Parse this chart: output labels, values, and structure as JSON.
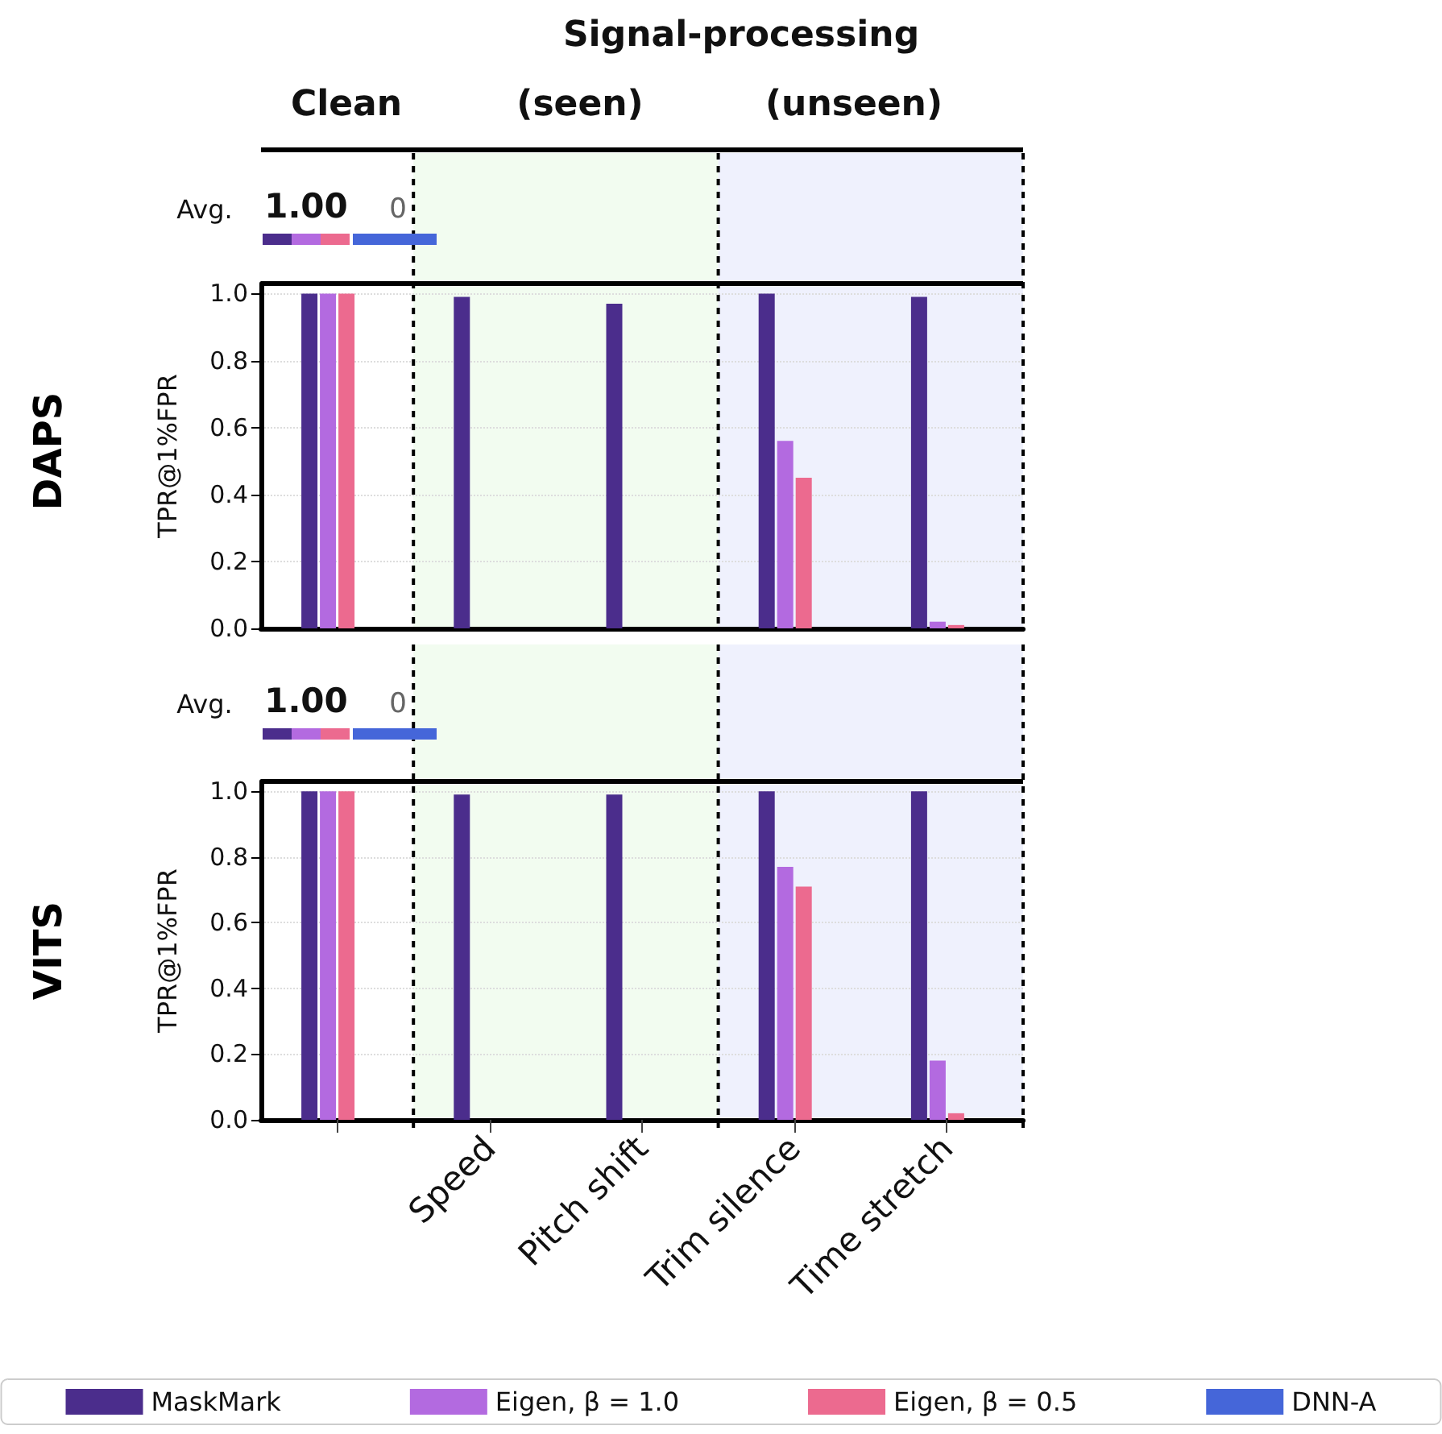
{
  "chart_data": [
    {
      "type": "bar",
      "title": "DAPS",
      "ylabel": "TPR@1%FPR",
      "annotations": [
        "Signal-processing",
        "Clean",
        "(seen)",
        "(unseen)",
        "Avg.",
        "1.00",
        "0"
      ],
      "categories": [
        null,
        "Speed",
        "Pitch shift",
        "Trim silence",
        "Time stretch"
      ],
      "series": [
        {
          "color": "#4b2d8c",
          "values": [
            1.0,
            0.99,
            0.97,
            1.0,
            0.99
          ]
        },
        {
          "color": "#b36ae0",
          "values": [
            1.0,
            0,
            0,
            0.56,
            0.02
          ]
        },
        {
          "color": "#ec6a8f",
          "values": [
            1.0,
            0,
            0,
            0.45,
            0.01
          ]
        },
        {
          "color": "#4566d9",
          "values": [
            0,
            0,
            0,
            0,
            0
          ]
        }
      ],
      "ylim": [
        0,
        1.03
      ],
      "yticks": [
        {
          "value": 0,
          "label": "0.0"
        },
        {
          "value": 0.2,
          "label": "0.2"
        },
        {
          "value": 0.4,
          "label": "0.4"
        },
        {
          "value": 0.6,
          "label": "0.6"
        },
        {
          "value": 0.8,
          "label": "0.8"
        },
        {
          "value": 1.0,
          "label": "1.0"
        }
      ],
      "bands": [
        {
          "axis": "x",
          "from": "Speed",
          "to": "Pitch shift",
          "color": "#f2fcf0"
        },
        {
          "axis": "x",
          "from": "Trim silence",
          "to": "Time stretch",
          "color": "#eff1fd"
        }
      ],
      "grid": "y",
      "tick_labels": "y",
      "legend": false
    },
    {
      "type": "bar",
      "title": "VITS",
      "ylabel": "TPR@1%FPR",
      "annotations": [
        "Avg.",
        "1.00",
        "0"
      ],
      "categories": [
        null,
        "Speed",
        "Pitch shift",
        "Trim silence",
        "Time stretch"
      ],
      "series": [
        {
          "name": "MaskMark",
          "color": "#4b2d8c",
          "values": [
            1.0,
            0.99,
            0.99,
            1.0,
            1.0
          ]
        },
        {
          "name": "Eigen, β = 1.0",
          "color": "#b36ae0",
          "values": [
            1.0,
            0,
            0,
            0.77,
            0.18
          ]
        },
        {
          "name": "Eigen, β = 0.5",
          "color": "#ec6a8f",
          "values": [
            1.0,
            0,
            0,
            0.71,
            0.02
          ]
        },
        {
          "name": "DNN-A",
          "color": "#4566d9",
          "values": [
            0,
            0,
            0,
            0,
            0
          ]
        }
      ],
      "ylim": [
        0,
        1.03
      ],
      "yticks": [
        {
          "value": 0,
          "label": "0.0"
        },
        {
          "value": 0.2,
          "label": "0.2"
        },
        {
          "value": 0.4,
          "label": "0.4"
        },
        {
          "value": 0.6,
          "label": "0.6"
        },
        {
          "value": 0.8,
          "label": "0.8"
        },
        {
          "value": 1.0,
          "label": "1.0"
        }
      ],
      "bands": [
        {
          "axis": "x",
          "from": "Speed",
          "to": "Pitch shift",
          "color": "#f2fcf0"
        },
        {
          "axis": "x",
          "from": "Trim silence",
          "to": "Time stretch",
          "color": "#eff1fd"
        }
      ],
      "grid": "y",
      "legend": "bottom"
    }
  ]
}
